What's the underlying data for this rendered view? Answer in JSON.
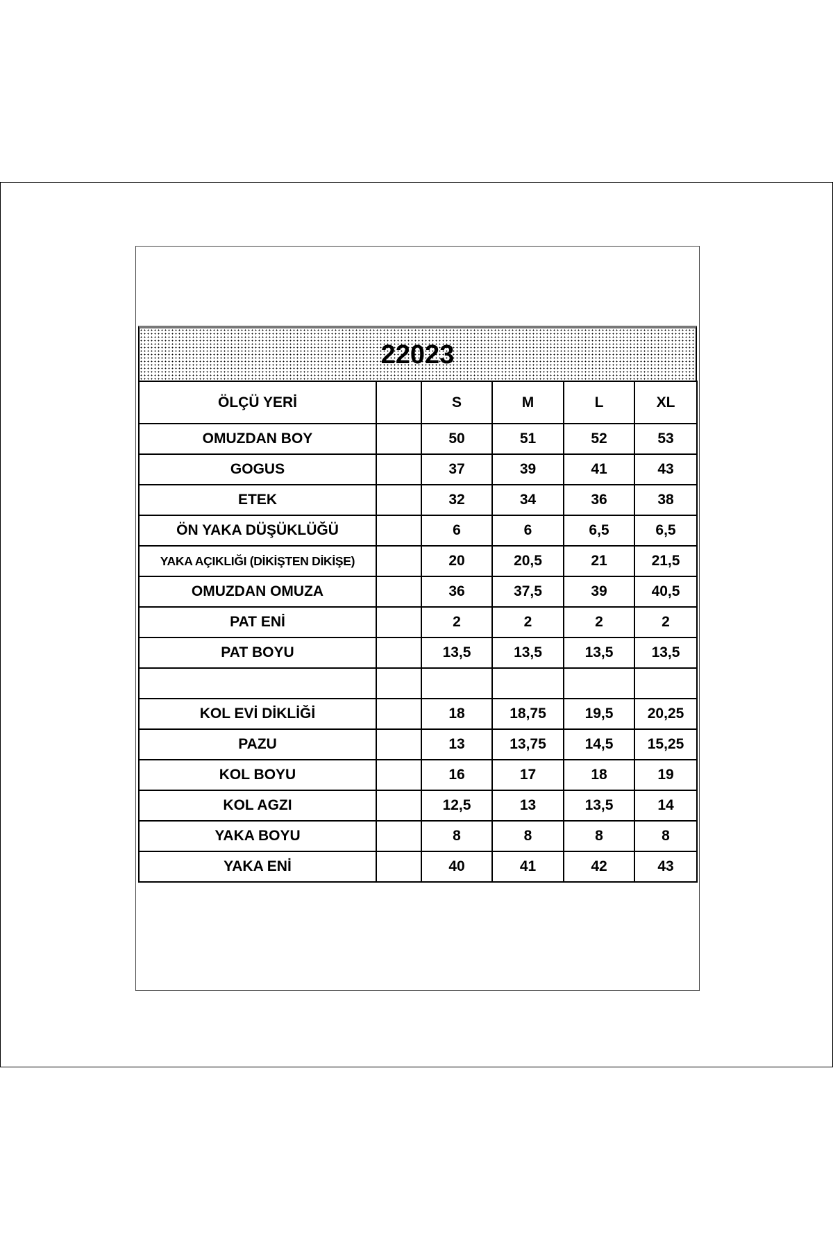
{
  "title": "22023",
  "columns": [
    "ÖLÇÜ YERİ",
    "",
    "S",
    "M",
    "L",
    "XL"
  ],
  "rows": [
    {
      "label": "OMUZDAN BOY",
      "values": [
        "50",
        "51",
        "52",
        "53"
      ]
    },
    {
      "label": "GOGUS",
      "values": [
        "37",
        "39",
        "41",
        "43"
      ]
    },
    {
      "label": "ETEK",
      "values": [
        "32",
        "34",
        "36",
        "38"
      ]
    },
    {
      "label": "ÖN YAKA DÜŞÜKLÜĞÜ",
      "values": [
        "6",
        "6",
        "6,5",
        "6,5"
      ]
    },
    {
      "label": "YAKA AÇIKLIĞI (DİKİŞTEN DİKİŞE)",
      "values": [
        "20",
        "20,5",
        "21",
        "21,5"
      ]
    },
    {
      "label": "OMUZDAN OMUZA",
      "values": [
        "36",
        "37,5",
        "39",
        "40,5"
      ]
    },
    {
      "label": "PAT ENİ",
      "values": [
        "2",
        "2",
        "2",
        "2"
      ]
    },
    {
      "label": "PAT BOYU",
      "values": [
        "13,5",
        "13,5",
        "13,5",
        "13,5"
      ]
    },
    {
      "label": "",
      "values": [
        "",
        "",
        "",
        ""
      ]
    },
    {
      "label": "KOL EVİ DİKLİĞİ",
      "values": [
        "18",
        "18,75",
        "19,5",
        "20,25"
      ]
    },
    {
      "label": "PAZU",
      "values": [
        "13",
        "13,75",
        "14,5",
        "15,25"
      ]
    },
    {
      "label": "KOL BOYU",
      "values": [
        "16",
        "17",
        "18",
        "19"
      ]
    },
    {
      "label": "KOL AGZI",
      "values": [
        "12,5",
        "13",
        "13,5",
        "14"
      ]
    },
    {
      "label": "YAKA BOYU",
      "values": [
        "8",
        "8",
        "8",
        "8"
      ]
    },
    {
      "label": "YAKA ENİ",
      "values": [
        "40",
        "41",
        "42",
        "43"
      ]
    }
  ]
}
